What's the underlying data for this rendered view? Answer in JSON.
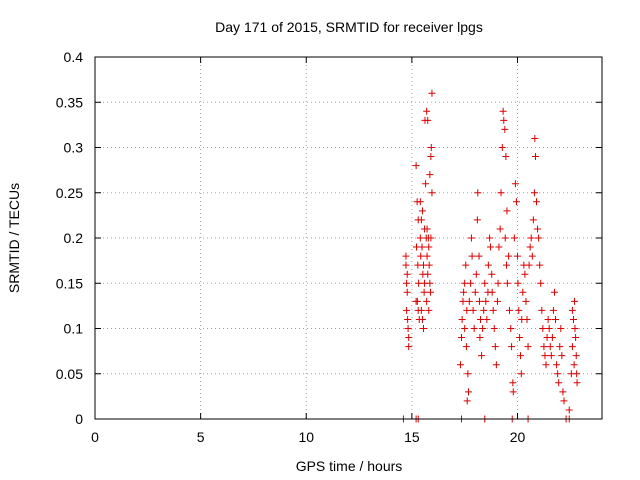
{
  "chart_data": {
    "type": "scatter",
    "title": "Day 171 of 2015, SRMTID for receiver lpgs",
    "xlabel": "GPS time / hours",
    "ylabel": "SRMTID / TECUs",
    "xlim": [
      0,
      24
    ],
    "ylim": [
      0,
      0.4
    ],
    "x_ticks": [
      0,
      5,
      10,
      15,
      20
    ],
    "x_tick_labels": [
      "0",
      "5",
      "10",
      "15",
      "20"
    ],
    "y_ticks": [
      0,
      0.05,
      0.1,
      0.15,
      0.2,
      0.25,
      0.3,
      0.35,
      0.4
    ],
    "y_tick_labels": [
      "0",
      "0.05",
      "0.1",
      "0.15",
      "0.2",
      "0.25",
      "0.3",
      "0.35",
      "0.4"
    ],
    "grid": true,
    "marker": "+",
    "marker_color": "#dd0000",
    "grid_color": "#a0a0a0",
    "points": [
      [
        14.72,
        0.18
      ],
      [
        14.72,
        0.17
      ],
      [
        14.75,
        0.15
      ],
      [
        14.78,
        0.14
      ],
      [
        14.75,
        0.12
      ],
      [
        14.8,
        0.11
      ],
      [
        14.82,
        0.1
      ],
      [
        14.85,
        0.09
      ],
      [
        14.85,
        0.08
      ],
      [
        14.78,
        0.16
      ],
      [
        15.2,
        0.28
      ],
      [
        15.25,
        0.24
      ],
      [
        15.3,
        0.22
      ],
      [
        15.22,
        0.19
      ],
      [
        15.28,
        0.17
      ],
      [
        15.32,
        0.15
      ],
      [
        15.26,
        0.13
      ],
      [
        15.3,
        0.12
      ],
      [
        15.35,
        0.11
      ],
      [
        15.2,
        0.13
      ],
      [
        15.4,
        0.2
      ],
      [
        15.45,
        0.22
      ],
      [
        15.5,
        0.23
      ],
      [
        15.48,
        0.19
      ],
      [
        15.42,
        0.18
      ],
      [
        15.55,
        0.17
      ],
      [
        15.52,
        0.16
      ],
      [
        15.6,
        0.15
      ],
      [
        15.58,
        0.14
      ],
      [
        15.45,
        0.12
      ],
      [
        15.5,
        0.11
      ],
      [
        15.55,
        0.1
      ],
      [
        15.62,
        0.33
      ],
      [
        15.7,
        0.34
      ],
      [
        15.75,
        0.33
      ],
      [
        15.65,
        0.26
      ],
      [
        15.68,
        0.2
      ],
      [
        15.72,
        0.21
      ],
      [
        15.78,
        0.2
      ],
      [
        15.8,
        0.19
      ],
      [
        15.72,
        0.18
      ],
      [
        15.75,
        0.16
      ],
      [
        15.82,
        0.17
      ],
      [
        15.85,
        0.15
      ],
      [
        15.88,
        0.14
      ],
      [
        15.9,
        0.29
      ],
      [
        15.92,
        0.3
      ],
      [
        15.95,
        0.36
      ],
      [
        15.85,
        0.27
      ],
      [
        15.9,
        0.2
      ],
      [
        15.95,
        0.25
      ],
      [
        15.8,
        0.12
      ],
      [
        15.7,
        0.13
      ],
      [
        15.6,
        0.21
      ],
      [
        15.4,
        0.24
      ],
      [
        17.3,
        0.06
      ],
      [
        17.35,
        0.09
      ],
      [
        17.38,
        0.11
      ],
      [
        17.42,
        0.13
      ],
      [
        17.45,
        0.14
      ],
      [
        17.5,
        0.15
      ],
      [
        17.55,
        0.17
      ],
      [
        17.6,
        0.12
      ],
      [
        17.5,
        0.1
      ],
      [
        17.58,
        0.08
      ],
      [
        17.65,
        0.05
      ],
      [
        17.68,
        0.03
      ],
      [
        17.62,
        0.02
      ],
      [
        17.72,
        0.13
      ],
      [
        17.78,
        0.15
      ],
      [
        17.82,
        0.2
      ],
      [
        17.85,
        0.18
      ],
      [
        17.9,
        0.12
      ],
      [
        17.95,
        0.1
      ],
      [
        18.0,
        0.14
      ],
      [
        18.05,
        0.16
      ],
      [
        18.1,
        0.22
      ],
      [
        18.12,
        0.25
      ],
      [
        18.18,
        0.18
      ],
      [
        18.2,
        0.13
      ],
      [
        18.25,
        0.11
      ],
      [
        18.22,
        0.09
      ],
      [
        18.3,
        0.07
      ],
      [
        18.35,
        0.1
      ],
      [
        18.4,
        0.12
      ],
      [
        18.45,
        0.15
      ],
      [
        18.5,
        0.13
      ],
      [
        18.55,
        0.11
      ],
      [
        18.6,
        0.14
      ],
      [
        18.62,
        0.17
      ],
      [
        18.68,
        0.2
      ],
      [
        18.72,
        0.19
      ],
      [
        18.78,
        0.16
      ],
      [
        18.8,
        0.14
      ],
      [
        18.85,
        0.12
      ],
      [
        18.9,
        0.1
      ],
      [
        18.95,
        0.08
      ],
      [
        19.0,
        0.06
      ],
      [
        19.05,
        0.13
      ],
      [
        19.08,
        0.15
      ],
      [
        19.12,
        0.19
      ],
      [
        19.18,
        0.21
      ],
      [
        19.22,
        0.25
      ],
      [
        19.28,
        0.3
      ],
      [
        19.32,
        0.34
      ],
      [
        19.35,
        0.33
      ],
      [
        19.4,
        0.32
      ],
      [
        19.45,
        0.29
      ],
      [
        19.5,
        0.23
      ],
      [
        19.42,
        0.2
      ],
      [
        19.48,
        0.17
      ],
      [
        19.52,
        0.15
      ],
      [
        19.58,
        0.18
      ],
      [
        19.62,
        0.12
      ],
      [
        19.68,
        0.1
      ],
      [
        19.72,
        0.08
      ],
      [
        19.78,
        0.04
      ],
      [
        19.8,
        0.03
      ],
      [
        19.85,
        0.2
      ],
      [
        19.9,
        0.26
      ],
      [
        19.95,
        0.24
      ],
      [
        20.0,
        0.18
      ],
      [
        20.02,
        0.15
      ],
      [
        20.06,
        0.12
      ],
      [
        20.1,
        0.09
      ],
      [
        20.14,
        0.07
      ],
      [
        20.18,
        0.05
      ],
      [
        20.2,
        0.11
      ],
      [
        20.25,
        0.14
      ],
      [
        20.3,
        0.17
      ],
      [
        20.35,
        0.16
      ],
      [
        20.4,
        0.13
      ],
      [
        20.45,
        0.11
      ],
      [
        20.5,
        0.08
      ],
      [
        20.55,
        0.17
      ],
      [
        20.6,
        0.19
      ],
      [
        20.65,
        0.2
      ],
      [
        20.7,
        0.18
      ],
      [
        20.75,
        0.22
      ],
      [
        20.8,
        0.25
      ],
      [
        20.85,
        0.29
      ],
      [
        20.82,
        0.31
      ],
      [
        20.9,
        0.24
      ],
      [
        20.95,
        0.21
      ],
      [
        21.0,
        0.2
      ],
      [
        21.05,
        0.17
      ],
      [
        21.1,
        0.15
      ],
      [
        21.15,
        0.12
      ],
      [
        21.2,
        0.1
      ],
      [
        21.25,
        0.08
      ],
      [
        21.3,
        0.07
      ],
      [
        21.35,
        0.06
      ],
      [
        21.4,
        0.09
      ],
      [
        21.45,
        0.11
      ],
      [
        21.5,
        0.1
      ],
      [
        21.55,
        0.08
      ],
      [
        21.6,
        0.07
      ],
      [
        21.65,
        0.09
      ],
      [
        21.7,
        0.12
      ],
      [
        21.75,
        0.14
      ],
      [
        21.8,
        0.11
      ],
      [
        21.85,
        0.06
      ],
      [
        21.9,
        0.05
      ],
      [
        21.95,
        0.04
      ],
      [
        22.0,
        0.08
      ],
      [
        22.05,
        0.1
      ],
      [
        22.1,
        0.07
      ],
      [
        22.15,
        0.03
      ],
      [
        22.2,
        0.02
      ],
      [
        22.3,
        0.0
      ],
      [
        22.45,
        0.01
      ],
      [
        22.55,
        0.05
      ],
      [
        22.6,
        0.08
      ],
      [
        22.65,
        0.11
      ],
      [
        22.7,
        0.13
      ],
      [
        22.72,
        0.1
      ],
      [
        22.75,
        0.09
      ],
      [
        22.78,
        0.07
      ],
      [
        22.8,
        0.05
      ],
      [
        22.82,
        0.04
      ],
      [
        22.6,
        0.12
      ],
      [
        22.68,
        0.06
      ],
      [
        14.6,
        0.0
      ],
      [
        15.2,
        0.0
      ],
      [
        15.3,
        0.0
      ],
      [
        17.35,
        0.0
      ],
      [
        18.45,
        0.0
      ],
      [
        19.75,
        0.0
      ],
      [
        20.5,
        0.0
      ],
      [
        22.45,
        0.0
      ]
    ]
  }
}
